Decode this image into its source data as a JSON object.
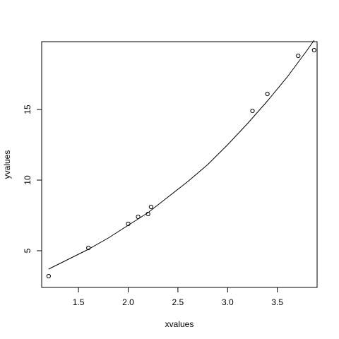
{
  "chart_data": {
    "type": "scatter",
    "title": "",
    "xlabel": "xvalues",
    "ylabel": "yvalues",
    "xlim": [
      1.13,
      3.9
    ],
    "ylim": [
      2.4,
      19.8
    ],
    "xticks": [
      "1.5",
      "2.0",
      "2.5",
      "3.0",
      "3.5"
    ],
    "yticks": [
      "5",
      "10",
      "15"
    ],
    "grid": false,
    "series": [
      {
        "type": "scatter",
        "marker": "open-circle",
        "x": [
          1.2,
          1.6,
          2.0,
          2.1,
          2.2,
          2.23,
          3.25,
          3.4,
          3.71,
          3.87
        ],
        "y": [
          3.2,
          5.2,
          6.9,
          7.4,
          7.6,
          8.1,
          14.9,
          16.1,
          18.8,
          19.2
        ]
      },
      {
        "type": "line",
        "x": [
          1.2,
          1.4,
          1.6,
          1.8,
          2.0,
          2.2,
          2.4,
          2.6,
          2.8,
          3.0,
          3.2,
          3.4,
          3.6,
          3.8,
          3.87
        ],
        "y": [
          3.7,
          4.4,
          5.1,
          5.9,
          6.8,
          7.7,
          8.8,
          9.9,
          11.1,
          12.5,
          14.0,
          15.6,
          17.3,
          19.2,
          19.9
        ]
      }
    ]
  }
}
